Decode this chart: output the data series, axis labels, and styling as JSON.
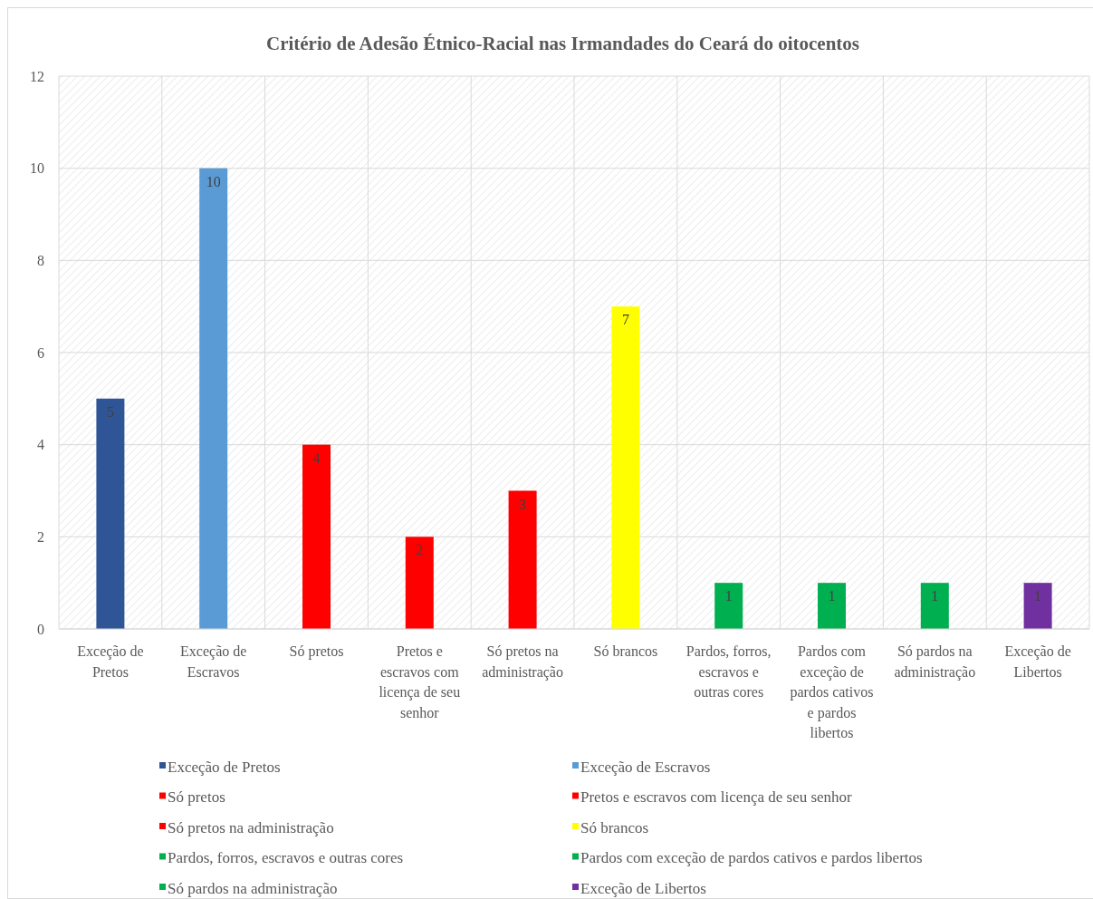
{
  "chart_data": {
    "type": "bar",
    "title": "Critério de Adesão Étnico-Racial nas Irmandades do Ceará do oitocentos",
    "categories": [
      "Exceção de Pretos",
      "Exceção de Escravos",
      "Só pretos",
      "Pretos e escravos com licença de seu senhor",
      "Só pretos na administração",
      "Só brancos",
      "Pardos, forros, escravos e outras cores",
      "Pardos com exceção de pardos cativos e pardos libertos",
      "Só pardos na administração",
      "Exceção de Libertos"
    ],
    "series": [
      {
        "name": "Exceção de Pretos",
        "color": "#2f5597",
        "values": [
          5,
          null,
          null,
          null,
          null,
          null,
          null,
          null,
          null,
          null
        ]
      },
      {
        "name": "Exceção de Escravos",
        "color": "#5b9bd5",
        "values": [
          null,
          10,
          null,
          null,
          null,
          null,
          null,
          null,
          null,
          null
        ]
      },
      {
        "name": "Só pretos",
        "color": "#ff0000",
        "values": [
          null,
          null,
          4,
          null,
          null,
          null,
          null,
          null,
          null,
          null
        ]
      },
      {
        "name": "Pretos e escravos com licença de seu senhor",
        "color": "#ff0000",
        "values": [
          null,
          null,
          null,
          2,
          null,
          null,
          null,
          null,
          null,
          null
        ]
      },
      {
        "name": "Só pretos na administração",
        "color": "#ff0000",
        "values": [
          null,
          null,
          null,
          null,
          3,
          null,
          null,
          null,
          null,
          null
        ]
      },
      {
        "name": "Só brancos",
        "color": "#ffff00",
        "values": [
          null,
          null,
          null,
          null,
          null,
          7,
          null,
          null,
          null,
          null
        ]
      },
      {
        "name": "Pardos, forros, escravos e outras cores",
        "color": "#00b050",
        "values": [
          null,
          null,
          null,
          null,
          null,
          null,
          1,
          null,
          null,
          null
        ]
      },
      {
        "name": "Pardos com exceção de pardos cativos e pardos libertos",
        "color": "#00b050",
        "values": [
          null,
          null,
          null,
          null,
          null,
          null,
          null,
          1,
          null,
          null
        ]
      },
      {
        "name": "Só pardos na administração",
        "color": "#00b050",
        "values": [
          null,
          null,
          null,
          null,
          null,
          null,
          null,
          null,
          1,
          null
        ]
      },
      {
        "name": "Exceção de Libertos",
        "color": "#7030a0",
        "values": [
          null,
          null,
          null,
          null,
          null,
          null,
          null,
          null,
          null,
          1
        ]
      }
    ],
    "ylim": [
      0,
      12
    ],
    "yticks": [
      0,
      2,
      4,
      6,
      8,
      10,
      12
    ],
    "grid": true,
    "data_labels": true,
    "legend": "bottom"
  }
}
